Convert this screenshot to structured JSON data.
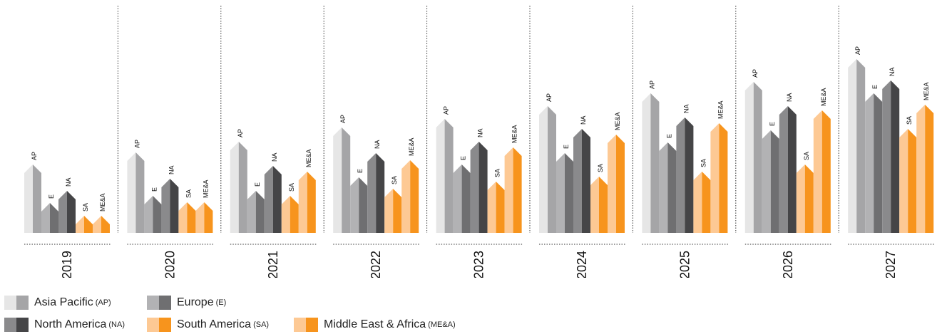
{
  "chart_data": {
    "type": "bar",
    "categories": [
      "2019",
      "2020",
      "2021",
      "2022",
      "2023",
      "2024",
      "2025",
      "2026",
      "2027"
    ],
    "series": [
      {
        "name": "Asia Pacific",
        "abbr": "AP",
        "light": "#e6e6e6",
        "dark": "#a5a5a7",
        "values": [
          84,
          101,
          116,
          136,
          148,
          166,
          184,
          200,
          232
        ]
      },
      {
        "name": "Europe",
        "abbr": "E",
        "light": "#b2b2b4",
        "dark": "#6f6f71",
        "values": [
          30,
          40,
          47,
          66,
          84,
          100,
          115,
          132,
          184
        ]
      },
      {
        "name": "North America",
        "abbr": "NA",
        "light": "#8a8a8c",
        "dark": "#454547",
        "values": [
          47,
          64,
          82,
          100,
          116,
          134,
          150,
          166,
          202
        ]
      },
      {
        "name": "South America",
        "abbr": "SA",
        "light": "#fdc994",
        "dark": "#f7941d",
        "values": [
          12,
          31,
          40,
          50,
          60,
          67,
          74,
          84,
          134
        ]
      },
      {
        "name": "Middle East & Africa",
        "abbr": "ME&A",
        "light": "#fdc994",
        "dark": "#f7941d",
        "values": [
          12,
          31,
          74,
          90,
          108,
          126,
          142,
          160,
          168
        ]
      }
    ],
    "legend": [
      {
        "name": "Asia Pacific",
        "abbr": "(AP)"
      },
      {
        "name": "Europe",
        "abbr": "(E)"
      },
      {
        "name": "North America",
        "abbr": "(NA)"
      },
      {
        "name": "South America",
        "abbr": "(SA)"
      },
      {
        "name": "Middle East & Africa",
        "abbr": "(ME&A)"
      }
    ],
    "legend_position": "bottom-left",
    "grid": false
  }
}
